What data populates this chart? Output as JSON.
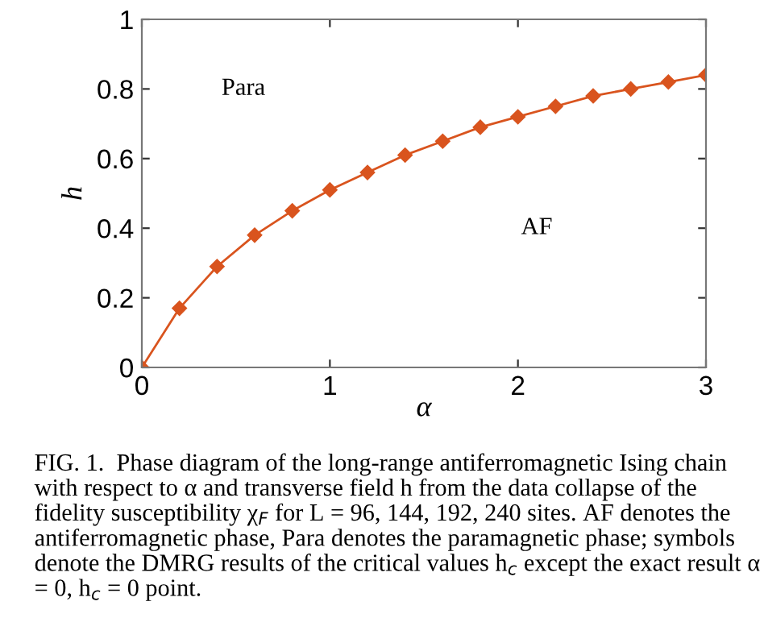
{
  "chart_data": {
    "type": "line",
    "xlabel": "α",
    "ylabel": "h",
    "x": [
      0,
      0.2,
      0.4,
      0.6,
      0.8,
      1.0,
      1.2,
      1.4,
      1.6,
      1.8,
      2.0,
      2.2,
      2.4,
      2.6,
      2.8,
      3.0
    ],
    "series": [
      {
        "color": "#d9541e",
        "values": [
          0,
          0.17,
          0.29,
          0.38,
          0.45,
          0.51,
          0.56,
          0.61,
          0.65,
          0.69,
          0.72,
          0.75,
          0.78,
          0.8,
          0.82,
          0.84
        ]
      }
    ],
    "xlim": [
      0,
      3
    ],
    "ylim": [
      0,
      1
    ],
    "xticks": [
      0,
      1,
      2,
      3
    ],
    "yticks": [
      0,
      0.2,
      0.4,
      0.6,
      0.8,
      1
    ],
    "marker": "diamond",
    "line_style": "solid",
    "grid": false,
    "legend": false,
    "annotations": [
      "Para",
      "AF",
      "FIG. 1.  Phase diagram of the long-range antiferromagnetic Ising chain with respect to α and transverse field h from the data collapse of the fidelity susceptibility χ$_{F}$ for L = 96, 144, 192, 240 sites. AF denotes the antiferromagnetic phase, Para denotes the paramagnetic phase; symbols denote the DMRG results of the critical values h$_{c}$ except the exact result α = 0, h$_{c}$ = 0 point."
    ]
  }
}
